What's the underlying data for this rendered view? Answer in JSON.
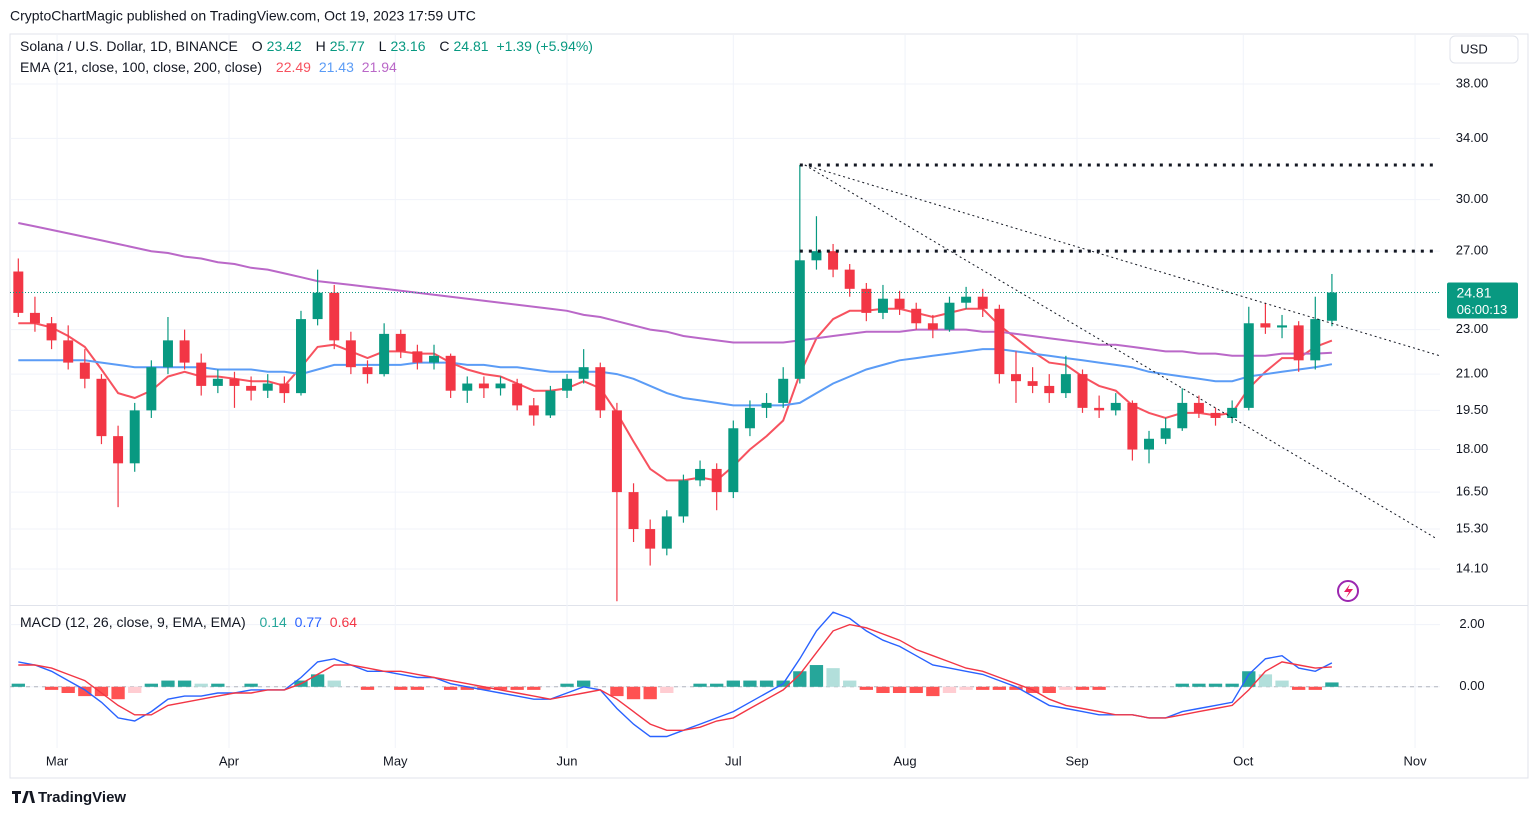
{
  "header": "CryptoChartMagic published on TradingView.com, Oct 19, 2023 17:59 UTC",
  "footer": "TradingView",
  "chart_data": {
    "type": "candlestick",
    "title": "Solana / U.S. Dollar, 1D, BINANCE",
    "ohlc_labels": [
      "O",
      "H",
      "L",
      "C"
    ],
    "change": "+1.39 (+5.94%)",
    "currency": "USD",
    "countdown": "06:00:13",
    "up_color": "#089981",
    "down_color": "#f23645",
    "log_scale": true,
    "grid": true,
    "xlim": [
      -0.5,
      85.5
    ],
    "xticks": [
      {
        "value": 2.33,
        "label": "Mar"
      },
      {
        "value": 12.67,
        "label": "Apr"
      },
      {
        "value": 22.67,
        "label": "May"
      },
      {
        "value": 33,
        "label": "Jun"
      },
      {
        "value": 43,
        "label": "Jul"
      },
      {
        "value": 53.33,
        "label": "Aug"
      },
      {
        "value": 63.67,
        "label": "Sep"
      },
      {
        "value": 73.67,
        "label": "Oct"
      },
      {
        "value": 84,
        "label": "Nov"
      }
    ],
    "ylim": [
      13.1,
      42
    ],
    "yticks": [
      {
        "value": 38,
        "label": "38.00"
      },
      {
        "value": 34,
        "label": "34.00"
      },
      {
        "value": 30,
        "label": "30.00"
      },
      {
        "value": 27,
        "label": "27.00"
      },
      {
        "value": 23,
        "label": "23.00"
      },
      {
        "value": 21,
        "label": "21.00"
      },
      {
        "value": 19.5,
        "label": "19.50"
      },
      {
        "value": 18,
        "label": "18.00"
      },
      {
        "value": 16.5,
        "label": "16.50"
      },
      {
        "value": 15.3,
        "label": "15.30"
      },
      {
        "value": 14.1,
        "label": "14.10"
      }
    ],
    "candles": [
      [
        25.9,
        26.6,
        23.6,
        23.8
      ],
      [
        23.8,
        24.6,
        22.9,
        23.3
      ],
      [
        23.3,
        23.6,
        22.1,
        22.5
      ],
      [
        22.5,
        23.2,
        21.2,
        21.5
      ],
      [
        21.5,
        22.1,
        20.4,
        20.8
      ],
      [
        20.8,
        21.0,
        18.2,
        18.5
      ],
      [
        18.5,
        18.9,
        16.0,
        17.5
      ],
      [
        17.5,
        19.8,
        17.2,
        19.5
      ],
      [
        19.5,
        21.6,
        19.2,
        21.3
      ],
      [
        21.3,
        23.6,
        21.0,
        22.5
      ],
      [
        22.5,
        23.0,
        21.2,
        21.5
      ],
      [
        21.5,
        21.9,
        20.1,
        20.5
      ],
      [
        20.5,
        21.2,
        20.2,
        20.8
      ],
      [
        20.8,
        21.1,
        19.6,
        20.5
      ],
      [
        20.5,
        20.9,
        19.9,
        20.3
      ],
      [
        20.3,
        21.0,
        20.0,
        20.6
      ],
      [
        20.6,
        20.9,
        19.8,
        20.2
      ],
      [
        20.2,
        23.9,
        20.1,
        23.5
      ],
      [
        23.5,
        26.0,
        23.2,
        24.8
      ],
      [
        24.8,
        25.2,
        22.1,
        22.5
      ],
      [
        22.5,
        22.9,
        21.0,
        21.3
      ],
      [
        21.3,
        21.6,
        20.6,
        21.0
      ],
      [
        21.0,
        23.3,
        20.9,
        22.8
      ],
      [
        22.8,
        23.0,
        21.7,
        22.0
      ],
      [
        22.0,
        22.3,
        21.2,
        21.5
      ],
      [
        21.5,
        22.3,
        21.2,
        21.8
      ],
      [
        21.8,
        21.9,
        20.0,
        20.3
      ],
      [
        20.3,
        20.9,
        19.8,
        20.6
      ],
      [
        20.6,
        20.9,
        20.0,
        20.4
      ],
      [
        20.4,
        20.9,
        20.1,
        20.6
      ],
      [
        20.6,
        20.8,
        19.5,
        19.7
      ],
      [
        19.7,
        20.0,
        18.9,
        19.3
      ],
      [
        19.3,
        20.5,
        19.2,
        20.3
      ],
      [
        20.3,
        21.0,
        20.0,
        20.8
      ],
      [
        20.8,
        22.1,
        20.6,
        21.3
      ],
      [
        21.3,
        21.5,
        19.2,
        19.5
      ],
      [
        19.5,
        19.8,
        13.2,
        16.5
      ],
      [
        16.5,
        16.8,
        14.9,
        15.3
      ],
      [
        15.3,
        15.6,
        14.2,
        14.7
      ],
      [
        14.7,
        15.9,
        14.5,
        15.7
      ],
      [
        15.7,
        17.1,
        15.5,
        16.9
      ],
      [
        16.9,
        17.6,
        16.7,
        17.3
      ],
      [
        17.3,
        17.5,
        15.9,
        16.5
      ],
      [
        16.5,
        19.1,
        16.3,
        18.8
      ],
      [
        18.8,
        19.9,
        18.5,
        19.6
      ],
      [
        19.6,
        20.2,
        19.2,
        19.8
      ],
      [
        19.8,
        21.3,
        19.6,
        20.8
      ],
      [
        20.8,
        32.2,
        20.6,
        26.5
      ],
      [
        26.5,
        29.0,
        26.0,
        27.0
      ],
      [
        27.0,
        27.4,
        25.6,
        26.0
      ],
      [
        26.0,
        26.3,
        24.6,
        25.0
      ],
      [
        25.0,
        25.3,
        23.4,
        23.8
      ],
      [
        23.8,
        25.2,
        23.5,
        24.5
      ],
      [
        24.5,
        24.9,
        23.7,
        24.0
      ],
      [
        24.0,
        24.3,
        23.0,
        23.3
      ],
      [
        23.3,
        23.7,
        22.6,
        23.0
      ],
      [
        23.0,
        24.6,
        22.9,
        24.3
      ],
      [
        24.3,
        25.1,
        24.0,
        24.6
      ],
      [
        24.6,
        25.0,
        23.6,
        24.0
      ],
      [
        24.0,
        24.2,
        20.6,
        21.0
      ],
      [
        21.0,
        22.0,
        19.8,
        20.7
      ],
      [
        20.7,
        21.3,
        20.2,
        20.5
      ],
      [
        20.5,
        21.0,
        19.8,
        20.2
      ],
      [
        20.2,
        21.8,
        20.0,
        21.0
      ],
      [
        21.0,
        21.2,
        19.4,
        19.6
      ],
      [
        19.6,
        20.1,
        19.2,
        19.5
      ],
      [
        19.5,
        20.2,
        19.3,
        19.8
      ],
      [
        19.8,
        19.9,
        17.6,
        18.0
      ],
      [
        18.0,
        18.7,
        17.5,
        18.4
      ],
      [
        18.4,
        19.2,
        18.2,
        18.8
      ],
      [
        18.8,
        20.4,
        18.7,
        19.8
      ],
      [
        19.8,
        20.1,
        19.2,
        19.4
      ],
      [
        19.4,
        19.6,
        18.9,
        19.2
      ],
      [
        19.2,
        19.9,
        19.0,
        19.6
      ],
      [
        19.6,
        24.1,
        19.5,
        23.3
      ],
      [
        23.3,
        24.3,
        22.8,
        23.1
      ],
      [
        23.1,
        23.7,
        22.6,
        23.2
      ],
      [
        23.2,
        23.4,
        21.1,
        21.6
      ],
      [
        21.6,
        24.6,
        21.2,
        23.5
      ],
      [
        23.42,
        25.77,
        23.16,
        24.81
      ]
    ],
    "overlays": {
      "title": "EMA (21, close, 100, close, 200, close)",
      "series": [
        {
          "color": "#f7525f",
          "values": [
            23.3,
            23.3,
            23.1,
            22.7,
            22.2,
            21.2,
            20.2,
            20.0,
            20.3,
            20.9,
            21.1,
            20.9,
            20.9,
            20.8,
            20.7,
            20.7,
            20.5,
            21.3,
            22.2,
            22.3,
            22.0,
            21.7,
            22.0,
            22.0,
            21.9,
            21.9,
            21.5,
            21.2,
            21.0,
            20.9,
            20.6,
            20.3,
            20.3,
            20.4,
            20.7,
            20.4,
            19.4,
            18.3,
            17.3,
            16.9,
            16.9,
            17.0,
            16.9,
            17.4,
            18.0,
            18.5,
            19.1,
            21.0,
            22.6,
            23.5,
            23.9,
            23.9,
            24.0,
            24.0,
            23.8,
            23.6,
            23.8,
            24.0,
            24.0,
            23.2,
            22.6,
            22.0,
            21.5,
            21.4,
            20.9,
            20.5,
            20.3,
            19.7,
            19.4,
            19.2,
            19.4,
            19.4,
            19.3,
            19.4,
            20.4,
            21.1,
            21.7,
            21.7,
            22.2,
            22.49
          ]
        },
        {
          "color": "#5b9cf6",
          "values": [
            21.6,
            21.6,
            21.6,
            21.6,
            21.6,
            21.5,
            21.4,
            21.3,
            21.3,
            21.3,
            21.3,
            21.3,
            21.2,
            21.2,
            21.2,
            21.1,
            21.1,
            21.0,
            21.2,
            21.4,
            21.4,
            21.4,
            21.4,
            21.4,
            21.5,
            21.5,
            21.5,
            21.4,
            21.4,
            21.3,
            21.3,
            21.2,
            21.1,
            21.1,
            21.1,
            21.1,
            21.0,
            20.8,
            20.5,
            20.2,
            20.0,
            19.9,
            19.8,
            19.7,
            19.7,
            19.7,
            19.7,
            19.8,
            20.2,
            20.6,
            20.9,
            21.2,
            21.4,
            21.6,
            21.7,
            21.8,
            21.9,
            22.0,
            22.1,
            22.1,
            22.0,
            21.9,
            21.8,
            21.7,
            21.6,
            21.5,
            21.4,
            21.3,
            21.1,
            21.0,
            20.9,
            20.8,
            20.7,
            20.7,
            20.9,
            21.0,
            21.1,
            21.2,
            21.3,
            21.43
          ]
        },
        {
          "color": "#ba68c8",
          "values": [
            28.6,
            28.4,
            28.2,
            28.0,
            27.8,
            27.6,
            27.4,
            27.2,
            27.0,
            26.9,
            26.7,
            26.6,
            26.4,
            26.3,
            26.1,
            26.0,
            25.8,
            25.6,
            25.4,
            25.3,
            25.2,
            25.1,
            25.0,
            24.9,
            24.8,
            24.7,
            24.6,
            24.5,
            24.4,
            24.3,
            24.2,
            24.1,
            24.0,
            23.9,
            23.7,
            23.6,
            23.4,
            23.2,
            23.0,
            22.9,
            22.7,
            22.6,
            22.5,
            22.4,
            22.4,
            22.4,
            22.4,
            22.5,
            22.6,
            22.7,
            22.8,
            22.9,
            22.9,
            22.9,
            23.0,
            23.0,
            23.0,
            23.0,
            22.9,
            22.9,
            22.8,
            22.7,
            22.6,
            22.5,
            22.4,
            22.3,
            22.3,
            22.2,
            22.1,
            22.0,
            22.0,
            21.9,
            21.9,
            21.8,
            21.8,
            21.8,
            21.9,
            21.9,
            21.9,
            21.94
          ]
        }
      ]
    },
    "drawings": [
      {
        "x": [
          47.0,
          85.3
        ],
        "y": [
          32.2,
          32.2
        ],
        "width": 3
      },
      {
        "x": [
          47.0,
          85.3
        ],
        "y": [
          27.0,
          27.0
        ],
        "width": 3
      },
      {
        "x": [
          47.3,
          85.3
        ],
        "y": [
          32.2,
          15.0
        ],
        "width": 1
      },
      {
        "x": [
          47.3,
          85.5
        ],
        "y": [
          32.2,
          21.8
        ],
        "width": 1
      }
    ],
    "indicator": {
      "type": "macd",
      "title": "MACD (12, 26, close, 9, EMA, EMA)",
      "ylim": [
        -1.97,
        2.6
      ],
      "yticks": [
        {
          "value": 2,
          "label": "2.00"
        },
        {
          "value": 0,
          "label": "0.00"
        }
      ],
      "histogram": {
        "colors": [
          "#26a69a",
          "#b2dfdb",
          "#ffcdd2",
          "#ff5252"
        ],
        "values": [
          0.1,
          0.0,
          -0.1,
          -0.2,
          -0.3,
          -0.3,
          -0.4,
          -0.2,
          0.1,
          0.2,
          0.2,
          0.1,
          0.1,
          0.0,
          0.1,
          0.0,
          0.0,
          0.2,
          0.4,
          0.2,
          0.0,
          -0.1,
          0.0,
          -0.1,
          -0.1,
          0.0,
          -0.1,
          -0.1,
          -0.1,
          -0.1,
          -0.1,
          -0.1,
          0.0,
          0.1,
          0.2,
          0.0,
          -0.3,
          -0.4,
          -0.4,
          -0.2,
          0.0,
          0.1,
          0.1,
          0.2,
          0.2,
          0.2,
          0.2,
          0.5,
          0.7,
          0.6,
          0.2,
          -0.1,
          -0.2,
          -0.2,
          -0.2,
          -0.3,
          -0.2,
          -0.1,
          -0.1,
          -0.1,
          -0.1,
          -0.2,
          -0.2,
          -0.1,
          -0.1,
          -0.1,
          0.0,
          0.0,
          0.0,
          0.0,
          0.1,
          0.1,
          0.1,
          0.1,
          0.5,
          0.4,
          0.2,
          -0.1,
          -0.1,
          0.14
        ]
      },
      "series": [
        {
          "color": "#2962ff",
          "values": [
            0.8,
            0.7,
            0.5,
            0.2,
            -0.1,
            -0.5,
            -1.0,
            -1.1,
            -0.8,
            -0.4,
            -0.3,
            -0.3,
            -0.2,
            -0.2,
            -0.1,
            -0.1,
            -0.1,
            0.3,
            0.8,
            0.9,
            0.7,
            0.5,
            0.5,
            0.4,
            0.3,
            0.3,
            0.1,
            0.0,
            -0.1,
            -0.2,
            -0.3,
            -0.4,
            -0.4,
            -0.2,
            0.0,
            -0.1,
            -0.7,
            -1.2,
            -1.6,
            -1.6,
            -1.4,
            -1.2,
            -1.0,
            -0.8,
            -0.5,
            -0.2,
            0.1,
            0.9,
            1.8,
            2.4,
            2.2,
            1.8,
            1.5,
            1.3,
            1.0,
            0.7,
            0.6,
            0.5,
            0.4,
            0.2,
            0.0,
            -0.3,
            -0.6,
            -0.7,
            -0.8,
            -0.9,
            -0.9,
            -0.9,
            -1.0,
            -1.0,
            -0.8,
            -0.7,
            -0.6,
            -0.5,
            0.4,
            0.9,
            1.0,
            0.6,
            0.5,
            0.77
          ]
        },
        {
          "color": "#f23645",
          "values": [
            0.7,
            0.7,
            0.6,
            0.4,
            0.2,
            -0.2,
            -0.6,
            -0.9,
            -0.9,
            -0.6,
            -0.5,
            -0.4,
            -0.3,
            -0.2,
            -0.2,
            -0.1,
            -0.1,
            0.1,
            0.4,
            0.7,
            0.7,
            0.6,
            0.5,
            0.5,
            0.4,
            0.3,
            0.2,
            0.1,
            0.0,
            -0.1,
            -0.2,
            -0.3,
            -0.4,
            -0.3,
            -0.2,
            -0.1,
            -0.4,
            -0.8,
            -1.2,
            -1.4,
            -1.4,
            -1.3,
            -1.1,
            -1.0,
            -0.7,
            -0.4,
            -0.1,
            0.4,
            1.1,
            1.8,
            2.0,
            1.9,
            1.7,
            1.5,
            1.2,
            1.0,
            0.8,
            0.6,
            0.5,
            0.3,
            0.1,
            -0.1,
            -0.4,
            -0.6,
            -0.7,
            -0.8,
            -0.9,
            -0.9,
            -1.0,
            -1.0,
            -0.9,
            -0.8,
            -0.7,
            -0.6,
            -0.1,
            0.5,
            0.8,
            0.7,
            0.6,
            0.64
          ]
        }
      ]
    }
  }
}
